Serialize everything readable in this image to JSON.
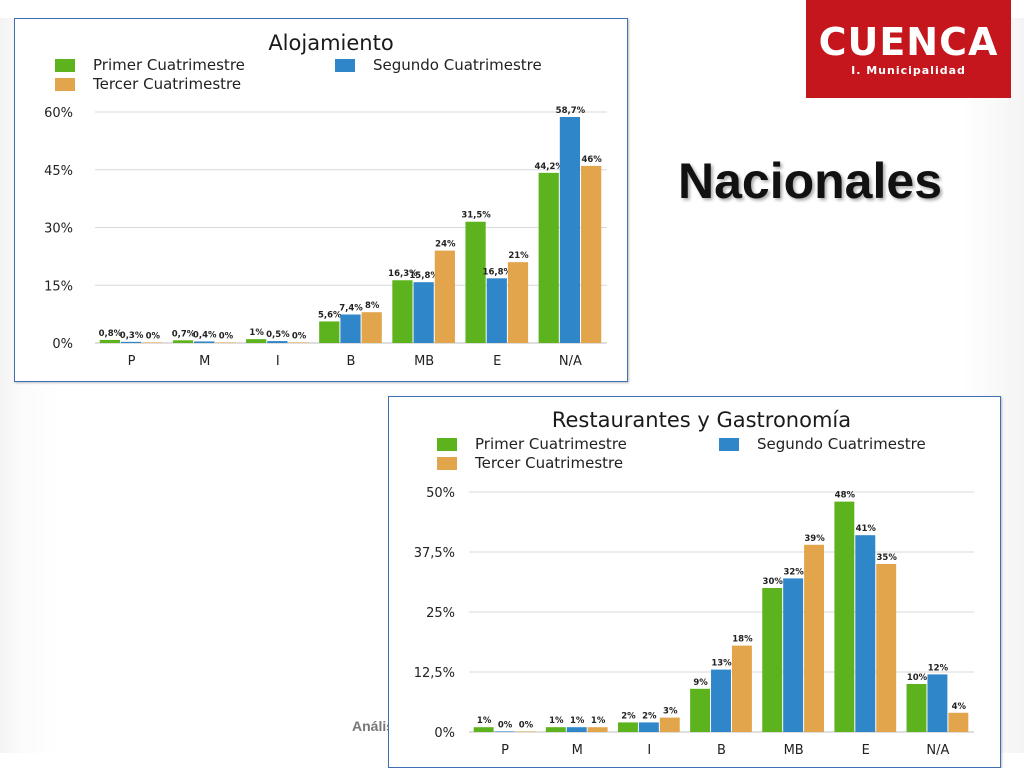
{
  "slide": {
    "title": "Nacionales",
    "footer_text": "Anális"
  },
  "logo": {
    "name": "CUENCA",
    "subtitle": "I. Municipalidad",
    "color": "#c4161c"
  },
  "colors": {
    "series": [
      "#5cb31e",
      "#2f86c9",
      "#e2a54c"
    ],
    "grid": "#d9d9d9",
    "frame": "#3f6fb5"
  },
  "chart_data": [
    {
      "type": "bar",
      "title": "Alojamiento",
      "categories": [
        "P",
        "M",
        "I",
        "B",
        "MB",
        "E",
        "N/A"
      ],
      "ylim": [
        0,
        60
      ],
      "yticks": [
        0,
        15,
        30,
        45,
        60
      ],
      "ytick_labels": [
        "0%",
        "15%",
        "30%",
        "45%",
        "60%"
      ],
      "grid": true,
      "legend_position": "top",
      "series": [
        {
          "name": "Primer Cuatrimestre",
          "values": [
            0.8,
            0.7,
            1,
            5.6,
            16.3,
            31.5,
            44.2
          ],
          "labels": [
            "0,8%",
            "0,7%",
            "1%",
            "5,6%",
            "16,3%",
            "31,5%",
            "44,2%"
          ]
        },
        {
          "name": "Segundo Cuatrimestre",
          "values": [
            0.3,
            0.4,
            0.5,
            7.4,
            15.8,
            16.8,
            58.7
          ],
          "labels": [
            "0,3%",
            "0,4%",
            "0,5%",
            "7,4%",
            "15,8%",
            "16,8%",
            "58,7%"
          ]
        },
        {
          "name": "Tercer Cuatrimestre",
          "values": [
            0,
            0,
            0,
            8,
            24,
            21,
            46
          ],
          "labels": [
            "0%",
            "0%",
            "0%",
            "8%",
            "24%",
            "21%",
            "46%"
          ]
        }
      ]
    },
    {
      "type": "bar",
      "title": "Restaurantes y Gastronomía",
      "categories": [
        "P",
        "M",
        "I",
        "B",
        "MB",
        "E",
        "N/A"
      ],
      "ylim": [
        0,
        50
      ],
      "yticks": [
        0,
        12.5,
        25,
        37.5,
        50
      ],
      "ytick_labels": [
        "0%",
        "12,5%",
        "25%",
        "37,5%",
        "50%"
      ],
      "grid": true,
      "legend_position": "top",
      "series": [
        {
          "name": "Primer Cuatrimestre",
          "values": [
            1,
            1,
            2,
            9,
            30,
            48,
            10
          ],
          "labels": [
            "1%",
            "1%",
            "2%",
            "9%",
            "30%",
            "48%",
            "10%"
          ]
        },
        {
          "name": "Segundo Cuatrimestre",
          "values": [
            0,
            1,
            2,
            13,
            32,
            41,
            12
          ],
          "labels": [
            "0%",
            "1%",
            "2%",
            "13%",
            "32%",
            "41%",
            "12%"
          ]
        },
        {
          "name": "Tercer Cuatrimestre",
          "values": [
            0,
            1,
            3,
            18,
            39,
            35,
            4
          ],
          "labels": [
            "0%",
            "1%",
            "3%",
            "18%",
            "39%",
            "35%",
            "4%"
          ]
        }
      ]
    }
  ]
}
